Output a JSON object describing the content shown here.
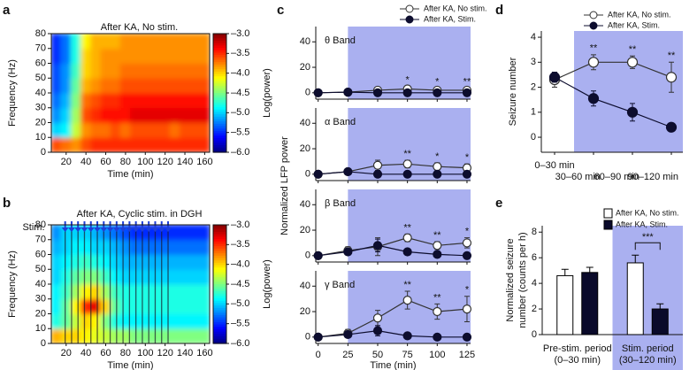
{
  "chart_data": [
    {
      "type": "heatmap",
      "panel": "a",
      "title": "After KA, No stim.",
      "xlabel": "Time (min)",
      "ylabel": "Frequency (Hz)",
      "x_bins": [
        5,
        15,
        25,
        35,
        45,
        55,
        65,
        75,
        85,
        95,
        105,
        115,
        125,
        135,
        145,
        155,
        165
      ],
      "y_bins": [
        0,
        10,
        20,
        30,
        40,
        50,
        60,
        70,
        80
      ],
      "z": [
        [
          -3.6,
          -3.7,
          -3.8,
          -3.6,
          -3.5,
          -3.5,
          -3.5,
          -3.5,
          -3.5,
          -3.5,
          -3.5,
          -3.5,
          -3.5,
          -3.5,
          -3.5,
          -3.5
        ],
        [
          -5.0,
          -4.9,
          -4.3,
          -3.8,
          -3.7,
          -3.7,
          -3.6,
          -3.7,
          -3.6,
          -3.6,
          -3.6,
          -3.6,
          -3.7,
          -3.6,
          -3.6,
          -3.6
        ],
        [
          -5.2,
          -5.0,
          -4.4,
          -3.6,
          -3.5,
          -3.4,
          -3.4,
          -3.4,
          -3.3,
          -3.3,
          -3.3,
          -3.3,
          -3.3,
          -3.3,
          -3.3,
          -3.3
        ],
        [
          -5.3,
          -5.1,
          -4.5,
          -3.7,
          -3.6,
          -3.5,
          -3.5,
          -3.4,
          -3.4,
          -3.4,
          -3.4,
          -3.4,
          -3.4,
          -3.4,
          -3.4,
          -3.4
        ],
        [
          -5.4,
          -5.2,
          -4.6,
          -3.9,
          -3.8,
          -3.7,
          -3.7,
          -3.6,
          -3.6,
          -3.6,
          -3.6,
          -3.6,
          -3.6,
          -3.6,
          -3.6,
          -3.6
        ],
        [
          -5.4,
          -5.2,
          -4.7,
          -4.0,
          -3.9,
          -3.8,
          -3.8,
          -3.7,
          -3.7,
          -3.7,
          -3.7,
          -3.7,
          -3.7,
          -3.7,
          -3.7,
          -3.7
        ],
        [
          -5.5,
          -5.3,
          -4.8,
          -4.0,
          -3.9,
          -3.8,
          -3.8,
          -3.8,
          -3.8,
          -3.8,
          -3.8,
          -3.8,
          -3.8,
          -3.8,
          -3.8,
          -3.8
        ],
        [
          -5.5,
          -5.3,
          -4.8,
          -4.1,
          -3.9,
          -3.9,
          -3.9,
          -3.8,
          -3.8,
          -3.8,
          -3.8,
          -3.8,
          -3.8,
          -3.8,
          -3.8,
          -3.8
        ]
      ],
      "xlim": [
        5,
        165
      ],
      "xticks": [
        20,
        40,
        60,
        80,
        100,
        120,
        140,
        160
      ],
      "ylim": [
        0,
        80
      ],
      "yticks": [
        0,
        10,
        20,
        30,
        40,
        50,
        60,
        70,
        80
      ],
      "clim": [
        -6,
        -3
      ],
      "colorbar_ticks": [
        {
          "value": -3,
          "label": "–3.0"
        },
        {
          "value": -3.5,
          "label": "–3.5"
        },
        {
          "value": -4,
          "label": "–4.0"
        },
        {
          "value": -4.5,
          "label": "–4.5"
        },
        {
          "value": -5,
          "label": "–5.0"
        },
        {
          "value": -5.5,
          "label": "–5.5"
        },
        {
          "value": -6,
          "label": "–6.0"
        }
      ],
      "colorbar_label": "Log(power)"
    },
    {
      "type": "heatmap",
      "panel": "b",
      "title": "After KA, Cyclic stim. in DGH",
      "xlabel": "Time (min)",
      "ylabel": "Frequency (Hz)",
      "stim_label": "Stim.",
      "stim_color": "#1f3fd6",
      "stim_times": [
        19,
        25.5,
        32,
        38.5,
        45,
        51.5,
        58,
        64.5,
        71,
        77.5,
        84,
        90.5,
        97,
        103.5,
        110,
        116.5,
        123
      ],
      "x_bins": [
        5,
        15,
        25,
        35,
        45,
        55,
        65,
        75,
        85,
        95,
        105,
        115,
        125,
        135,
        145,
        155,
        165
      ],
      "y_bins": [
        0,
        10,
        20,
        30,
        40,
        50,
        60,
        70,
        80
      ],
      "z": [
        [
          -3.9,
          -4.0,
          -4.0,
          -4.1,
          -4.2,
          -4.3,
          -4.4,
          -4.4,
          -4.5,
          -4.5,
          -4.5,
          -4.5,
          -4.5,
          -4.5,
          -4.5,
          -4.5
        ],
        [
          -4.8,
          -4.6,
          -4.3,
          -4.0,
          -4.1,
          -4.5,
          -4.8,
          -4.9,
          -4.9,
          -4.9,
          -4.9,
          -4.9,
          -4.9,
          -4.9,
          -4.9,
          -4.9
        ],
        [
          -4.9,
          -4.6,
          -4.1,
          -3.5,
          -3.3,
          -4.0,
          -4.6,
          -4.8,
          -4.8,
          -4.8,
          -4.8,
          -4.8,
          -4.8,
          -4.8,
          -4.8,
          -4.8
        ],
        [
          -4.9,
          -4.7,
          -4.4,
          -4.1,
          -4.0,
          -4.4,
          -4.7,
          -4.8,
          -4.8,
          -4.8,
          -4.8,
          -4.8,
          -4.8,
          -4.8,
          -4.8,
          -4.8
        ],
        [
          -5.0,
          -4.8,
          -4.6,
          -4.5,
          -4.5,
          -4.7,
          -4.9,
          -5.0,
          -5.0,
          -5.0,
          -5.0,
          -5.0,
          -5.0,
          -5.0,
          -5.0,
          -5.0
        ],
        [
          -5.0,
          -4.9,
          -4.8,
          -4.7,
          -4.8,
          -4.9,
          -5.0,
          -5.1,
          -5.1,
          -5.1,
          -5.1,
          -5.1,
          -5.1,
          -5.1,
          -5.1,
          -5.1
        ],
        [
          -5.1,
          -5.0,
          -4.9,
          -4.9,
          -5.0,
          -5.0,
          -5.1,
          -5.2,
          -5.3,
          -5.3,
          -5.3,
          -5.3,
          -5.3,
          -5.3,
          -5.3,
          -5.3
        ],
        [
          -5.2,
          -5.0,
          -5.0,
          -5.0,
          -5.1,
          -5.2,
          -5.3,
          -5.4,
          -5.5,
          -5.5,
          -5.5,
          -5.5,
          -5.5,
          -5.5,
          -5.5,
          -5.5
        ]
      ],
      "xlim": [
        5,
        165
      ],
      "xticks": [
        20,
        40,
        60,
        80,
        100,
        120,
        140,
        160
      ],
      "ylim": [
        0,
        80
      ],
      "yticks": [
        0,
        10,
        20,
        30,
        40,
        50,
        60,
        70,
        80
      ],
      "clim": [
        -6,
        -3
      ],
      "colorbar_ticks": [
        {
          "value": -3,
          "label": "–3.0"
        },
        {
          "value": -3.5,
          "label": "–3.5"
        },
        {
          "value": -4,
          "label": "–4.0"
        },
        {
          "value": -4.5,
          "label": "–4.5"
        },
        {
          "value": -5,
          "label": "–5.0"
        },
        {
          "value": -5.5,
          "label": "–5.5"
        },
        {
          "value": -6,
          "label": "–6.0"
        }
      ],
      "colorbar_label": "Log(power)"
    },
    {
      "type": "line",
      "panel": "c",
      "label": "θ Band",
      "ylabel": "Normalized LFP power",
      "x": [
        0,
        25,
        50,
        75,
        100,
        125
      ],
      "xlim": [
        -2,
        128
      ],
      "ylim": [
        -5,
        52
      ],
      "yticks": [
        0,
        20,
        40
      ],
      "shade_from": 25,
      "shade_color": "#aab0f0",
      "series": [
        {
          "name": "After KA, No stim.",
          "color": "#333333",
          "marker": "open",
          "values": [
            0,
            0.5,
            2,
            3,
            2,
            2
          ],
          "errors": [
            0,
            0.5,
            1.5,
            2,
            1.5,
            1.5
          ]
        },
        {
          "name": "After KA, Stim.",
          "color": "#0d0d2e",
          "marker": "filled",
          "values": [
            0,
            0.5,
            0,
            0,
            0,
            0
          ],
          "errors": [
            0,
            0.5,
            0.5,
            0.5,
            0.5,
            0.5
          ]
        }
      ],
      "annotations": [
        {
          "at": 75,
          "text": "*"
        },
        {
          "at": 100,
          "text": "*"
        },
        {
          "at": 125,
          "text": "**"
        }
      ]
    },
    {
      "type": "line",
      "label": "α Band",
      "x": [
        0,
        25,
        50,
        75,
        100,
        125
      ],
      "xlim": [
        -2,
        128
      ],
      "ylim": [
        -5,
        52
      ],
      "yticks": [
        0,
        20,
        40
      ],
      "shade_from": 25,
      "shade_color": "#aab0f0",
      "series": [
        {
          "color": "#333333",
          "marker": "open",
          "values": [
            0,
            2,
            7,
            8,
            6,
            5
          ],
          "errors": [
            0,
            1,
            4,
            3,
            3,
            3
          ]
        },
        {
          "color": "#0d0d2e",
          "marker": "filled",
          "values": [
            0,
            2,
            0,
            0,
            0,
            0
          ],
          "errors": [
            0,
            1,
            0.5,
            0.5,
            0.5,
            0.5
          ]
        }
      ],
      "annotations": [
        {
          "at": 75,
          "text": "**"
        },
        {
          "at": 100,
          "text": "*"
        },
        {
          "at": 125,
          "text": "*"
        }
      ]
    },
    {
      "type": "line",
      "label": "β Band",
      "x": [
        0,
        25,
        50,
        75,
        100,
        125
      ],
      "xlim": [
        -2,
        128
      ],
      "ylim": [
        -5,
        52
      ],
      "yticks": [
        0,
        20,
        40
      ],
      "shade_from": 25,
      "shade_color": "#aab0f0",
      "series": [
        {
          "color": "#333333",
          "marker": "open",
          "values": [
            0,
            4,
            7,
            14,
            8,
            10
          ],
          "errors": [
            0,
            3,
            7,
            3,
            3,
            4
          ]
        },
        {
          "color": "#0d0d2e",
          "marker": "filled",
          "values": [
            0,
            3,
            8,
            3,
            1,
            0
          ],
          "errors": [
            0,
            2,
            5,
            2,
            1,
            1
          ]
        }
      ],
      "annotations": [
        {
          "at": 75,
          "text": "**"
        },
        {
          "at": 100,
          "text": "**"
        },
        {
          "at": 125,
          "text": "*"
        }
      ]
    },
    {
      "type": "line",
      "label": "γ Band",
      "xlabel": "Time (min)",
      "x": [
        0,
        25,
        50,
        75,
        100,
        125
      ],
      "xlim": [
        -2,
        128
      ],
      "xticks": [
        0,
        25,
        50,
        75,
        100,
        125
      ],
      "ylim": [
        -5,
        52
      ],
      "yticks": [
        0,
        20,
        40
      ],
      "shade_from": 25,
      "shade_color": "#aab0f0",
      "series": [
        {
          "color": "#333333",
          "marker": "open",
          "values": [
            0,
            3,
            15,
            29,
            20,
            22
          ],
          "errors": [
            0,
            3,
            6,
            7,
            6,
            10
          ]
        },
        {
          "color": "#0d0d2e",
          "marker": "filled",
          "values": [
            0,
            2,
            5,
            1,
            0,
            0
          ],
          "errors": [
            0,
            2,
            4,
            1,
            1,
            1
          ]
        }
      ],
      "annotations": [
        {
          "at": 75,
          "text": "**"
        },
        {
          "at": 100,
          "text": "**"
        },
        {
          "at": 125,
          "text": "*"
        }
      ]
    },
    {
      "type": "line",
      "panel": "d",
      "ylabel": "Seizure number",
      "categories": [
        "0–30 min",
        "30–60 min",
        "60–90 min",
        "90–120 min"
      ],
      "ylim": [
        -0.6,
        4.25
      ],
      "yticks": [
        0,
        1,
        2,
        3,
        4
      ],
      "shade_from": 1,
      "shade_color": "#aab0f0",
      "series": [
        {
          "name": "After KA, No stim.",
          "color": "#333333",
          "marker": "open",
          "values": [
            2.3,
            3.0,
            3.0,
            2.4
          ],
          "errors": [
            0.3,
            0.3,
            0.25,
            0.6
          ]
        },
        {
          "name": "After KA, Stim.",
          "color": "#0d0d2e",
          "marker": "filled",
          "values": [
            2.4,
            1.55,
            1.0,
            0.4
          ],
          "errors": [
            0.2,
            0.3,
            0.35,
            0.15
          ]
        }
      ],
      "annotations": [
        {
          "at": 1,
          "text": "**"
        },
        {
          "at": 2,
          "text": "**"
        },
        {
          "at": 3,
          "text": "**"
        }
      ]
    },
    {
      "type": "bar",
      "panel": "e",
      "ylabel": [
        "Normalized seizure",
        "number (counts per h)"
      ],
      "categories": [
        [
          "Pre-stim. period",
          "(0–30 min)"
        ],
        [
          "Stim. period",
          "(30–120 min)"
        ]
      ],
      "ylim": [
        0,
        8.5
      ],
      "yticks": [
        0,
        2,
        4,
        6,
        8
      ],
      "shade_from": 1,
      "shade_color": "#aab0f0",
      "series": [
        {
          "name": "After KA, No stim.",
          "color": "#000000",
          "fill": "#ffffff",
          "values": [
            4.6,
            5.6
          ],
          "errors": [
            0.5,
            0.6
          ]
        },
        {
          "name": "After KA, Stim.",
          "color": "#000000",
          "fill": "#0a0a2a",
          "values": [
            4.85,
            2.0
          ],
          "errors": [
            0.4,
            0.4
          ]
        }
      ],
      "annotations": [
        {
          "at": 1,
          "text": "***"
        }
      ]
    }
  ]
}
